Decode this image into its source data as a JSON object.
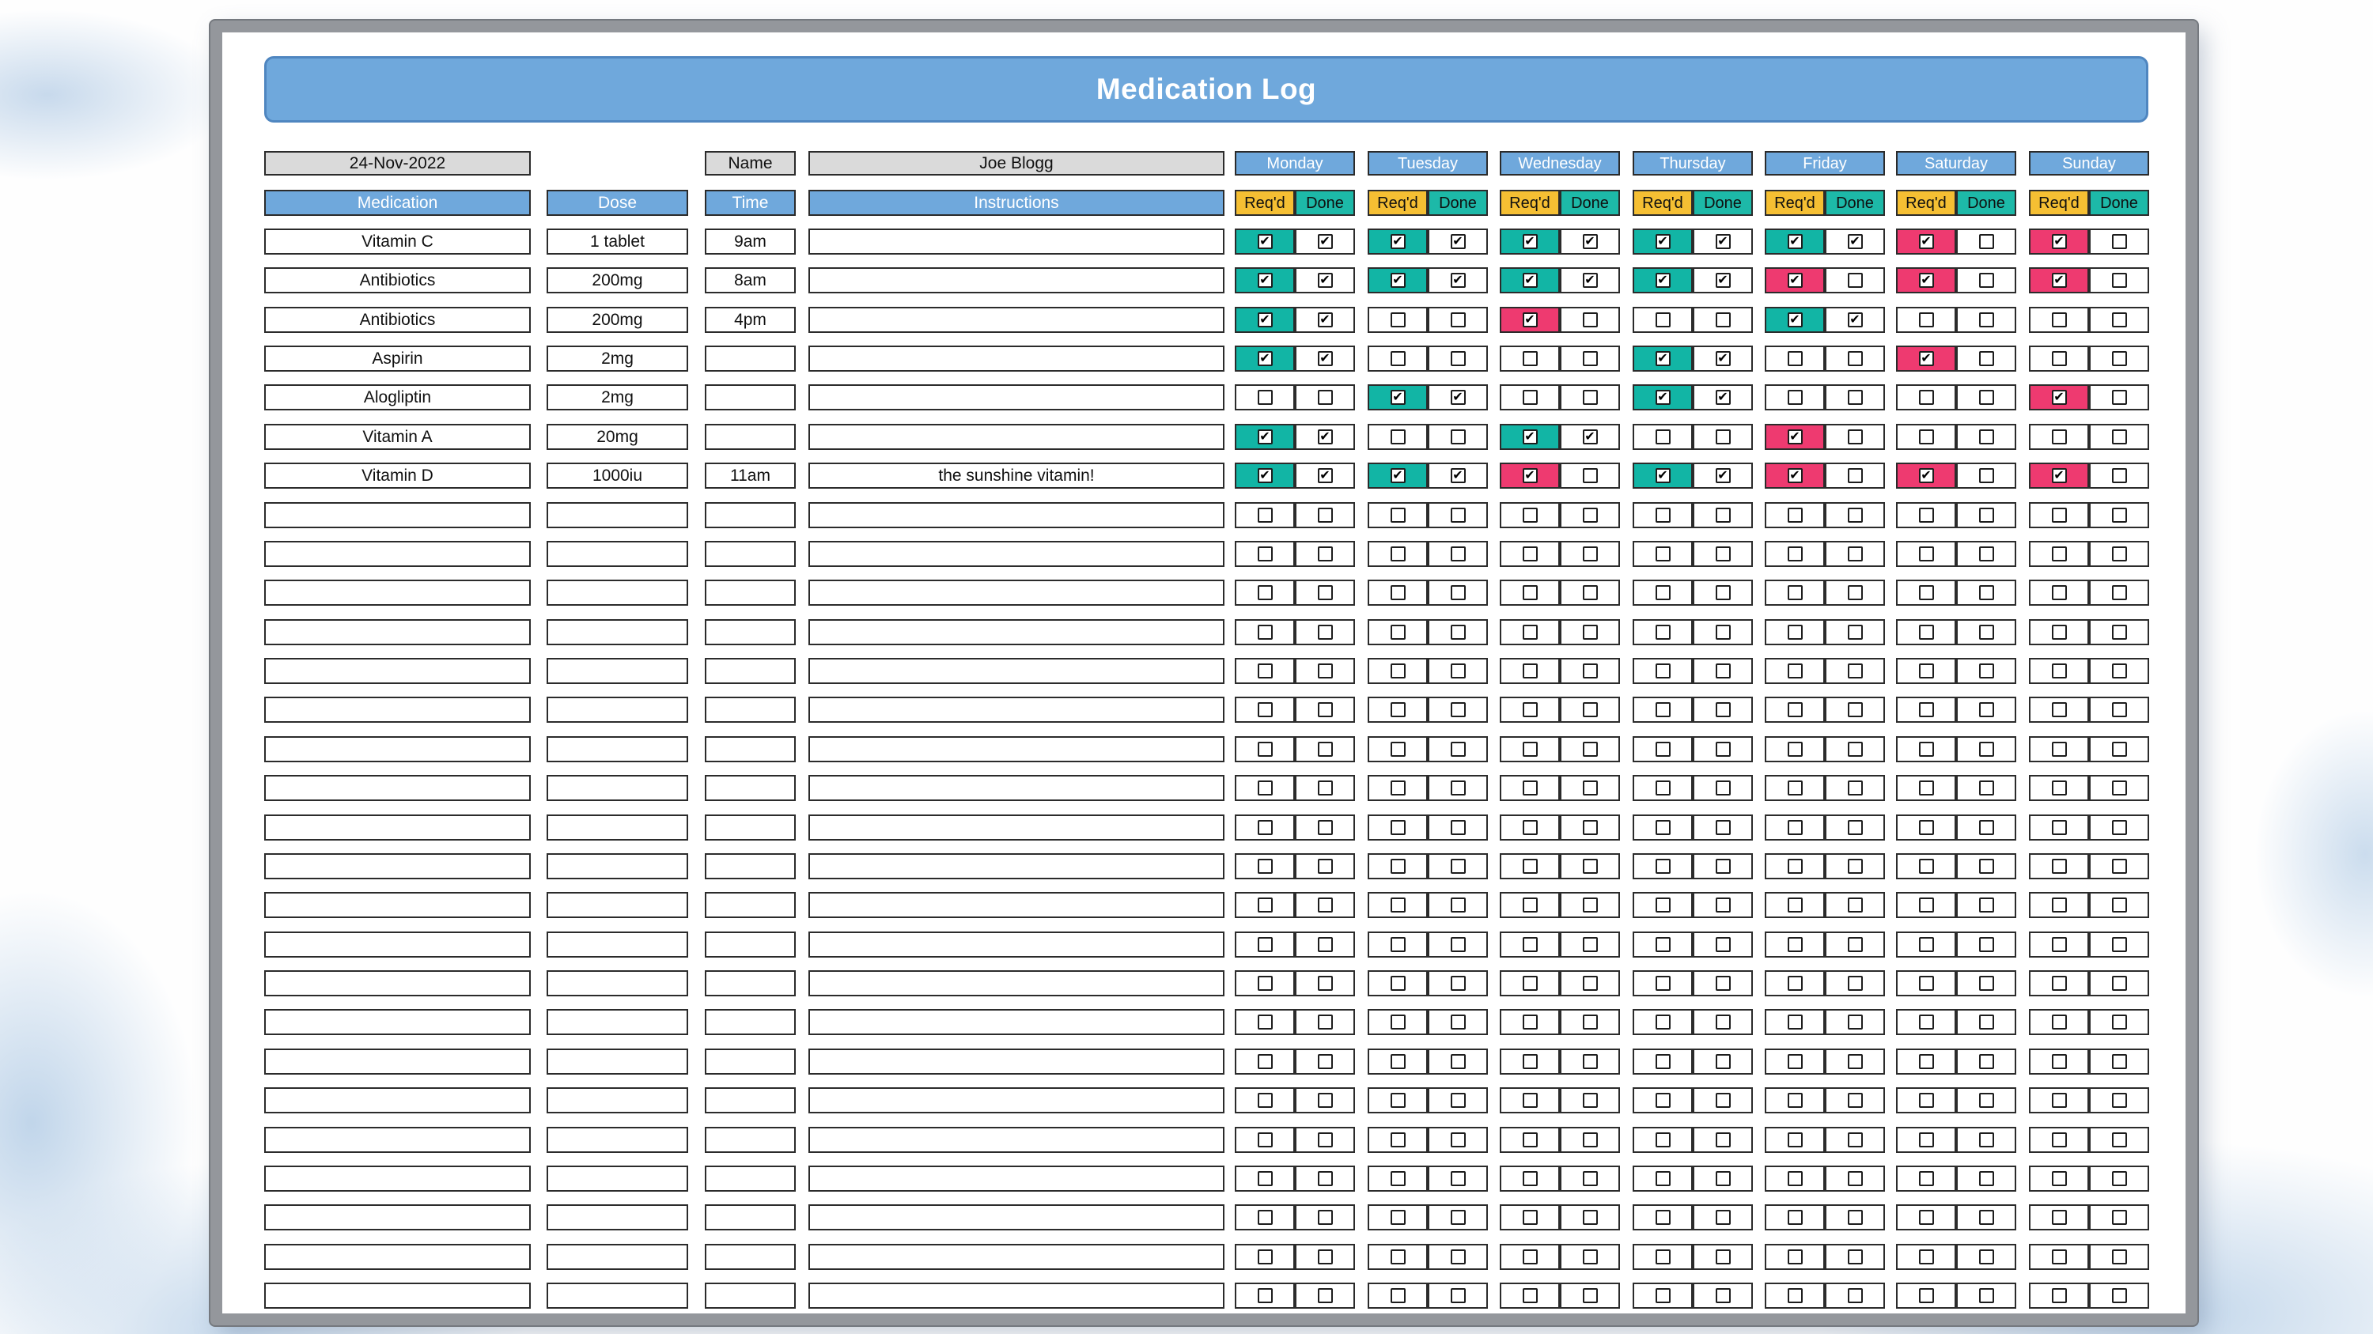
{
  "page": {
    "title": "Medication Log",
    "date": "24-Nov-2022",
    "name_label": "Name",
    "name_value": "Joe Blogg"
  },
  "columns": {
    "medication": "Medication",
    "dose": "Dose",
    "time": "Time",
    "instructions": "Instructions",
    "reqd": "Req'd",
    "done": "Done"
  },
  "days": [
    "Monday",
    "Tuesday",
    "Wednesday",
    "Thursday",
    "Friday",
    "Saturday",
    "Sunday"
  ],
  "colors": {
    "header_blue": "#6fa8dc",
    "reqd_yellow": "#f5bf33",
    "done_teal": "#1db9a8",
    "checked_teal": "#12b5a5",
    "checked_pink": "#ee3a70",
    "light_gray": "#dadada"
  },
  "rows": [
    {
      "medication": "Vitamin C",
      "dose": "1 tablet",
      "time": "9am",
      "instructions": "",
      "days": [
        [
          1,
          1
        ],
        [
          1,
          1
        ],
        [
          1,
          1
        ],
        [
          1,
          1
        ],
        [
          1,
          1
        ],
        [
          1,
          0
        ],
        [
          1,
          0
        ]
      ]
    },
    {
      "medication": "Antibiotics",
      "dose": "200mg",
      "time": "8am",
      "instructions": "",
      "days": [
        [
          1,
          1
        ],
        [
          1,
          1
        ],
        [
          1,
          1
        ],
        [
          1,
          1
        ],
        [
          1,
          0
        ],
        [
          1,
          0
        ],
        [
          1,
          0
        ]
      ]
    },
    {
      "medication": "Antibiotics",
      "dose": "200mg",
      "time": "4pm",
      "instructions": "",
      "days": [
        [
          1,
          1
        ],
        [
          0,
          0
        ],
        [
          1,
          0
        ],
        [
          0,
          0
        ],
        [
          1,
          1
        ],
        [
          0,
          0
        ],
        [
          0,
          0
        ]
      ]
    },
    {
      "medication": "Aspirin",
      "dose": "2mg",
      "time": "",
      "instructions": "",
      "days": [
        [
          1,
          1
        ],
        [
          0,
          0
        ],
        [
          0,
          0
        ],
        [
          1,
          1
        ],
        [
          0,
          0
        ],
        [
          1,
          0
        ],
        [
          0,
          0
        ]
      ]
    },
    {
      "medication": "Alogliptin",
      "dose": "2mg",
      "time": "",
      "instructions": "",
      "days": [
        [
          0,
          0
        ],
        [
          1,
          1
        ],
        [
          0,
          0
        ],
        [
          1,
          1
        ],
        [
          0,
          0
        ],
        [
          0,
          0
        ],
        [
          1,
          0
        ]
      ]
    },
    {
      "medication": "Vitamin A",
      "dose": "20mg",
      "time": "",
      "instructions": "",
      "days": [
        [
          1,
          1
        ],
        [
          0,
          0
        ],
        [
          1,
          1
        ],
        [
          0,
          0
        ],
        [
          1,
          0
        ],
        [
          0,
          0
        ],
        [
          0,
          0
        ]
      ]
    },
    {
      "medication": "Vitamin D",
      "dose": "1000iu",
      "time": "11am",
      "instructions": "the sunshine vitamin!",
      "days": [
        [
          1,
          1
        ],
        [
          1,
          1
        ],
        [
          1,
          0
        ],
        [
          1,
          1
        ],
        [
          1,
          0
        ],
        [
          1,
          0
        ],
        [
          1,
          0
        ]
      ]
    }
  ],
  "empty_row_count": 21
}
